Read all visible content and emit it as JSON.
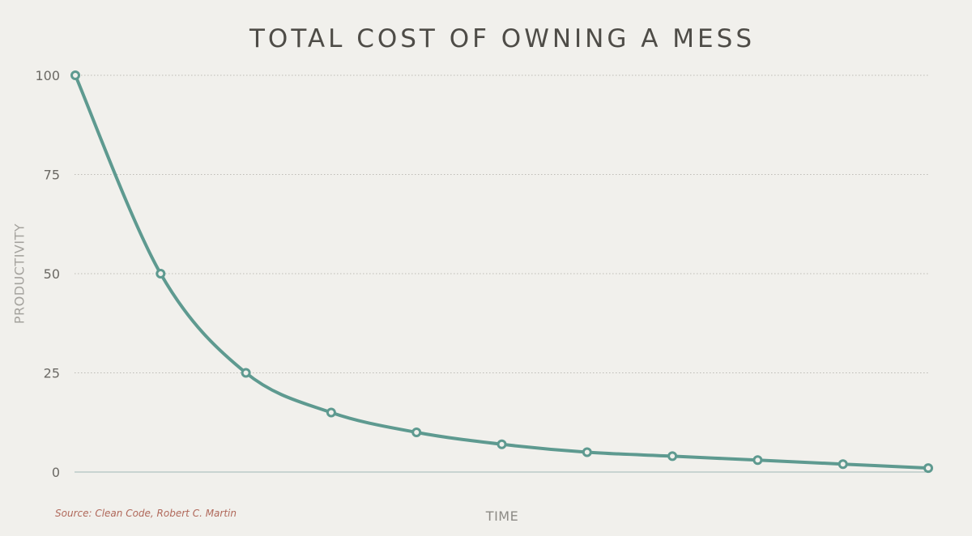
{
  "chart_data": {
    "type": "line",
    "title": "TOTAL COST OF OWNING A MESS",
    "xlabel": "TIME",
    "ylabel": "PRODUCTIVITY",
    "ylim": [
      0,
      100
    ],
    "yticks": [
      "0",
      "25",
      "50",
      "75",
      "100"
    ],
    "grid": "horizontal dotted",
    "series": [
      {
        "x": [
          1,
          2,
          3,
          4,
          5,
          6,
          7,
          8,
          9,
          10,
          11
        ],
        "values": [
          100,
          50,
          25,
          15,
          10,
          7,
          5,
          4,
          3,
          2,
          1
        ]
      }
    ],
    "line_color": "#5e9a90",
    "annotation": "Source: Clean Code, Robert C. Martin"
  }
}
